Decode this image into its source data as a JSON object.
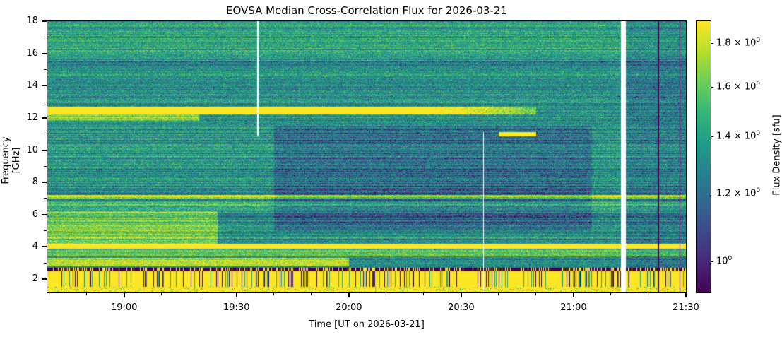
{
  "chart_data": {
    "type": "heatmap",
    "title": "EOVSA Median Cross-Correlation Flux for 2026-03-21",
    "xlabel": "Time [UT on 2026-03-21]",
    "ylabel": "Frequency [GHz]",
    "colorbar_label": "Flux Density [sfu]",
    "colorbar_scale": "log",
    "colormap": "viridis",
    "xlim": [
      "18:39",
      "21:30"
    ],
    "ylim": [
      1.2,
      18
    ],
    "clim": [
      0.92,
      1.91
    ],
    "x_ticks": [
      "19:00",
      "19:30",
      "20:00",
      "20:30",
      "21:00",
      "21:30"
    ],
    "y_ticks": [
      2,
      4,
      6,
      8,
      10,
      12,
      14,
      16,
      18
    ],
    "colorbar_ticks": [
      {
        "value": 1.0,
        "mantissa": "",
        "exp": "0"
      },
      {
        "value": 1.2,
        "mantissa": "1.2",
        "exp": "0"
      },
      {
        "value": 1.4,
        "mantissa": "1.4",
        "exp": "0"
      },
      {
        "value": 1.6,
        "mantissa": "1.6",
        "exp": "0"
      },
      {
        "value": 1.8,
        "mantissa": "1.8",
        "exp": "0"
      }
    ],
    "features": [
      {
        "name": "bright band",
        "freq_ghz": [
          12.2,
          12.7
        ],
        "time": [
          "18:39",
          "20:10"
        ],
        "flux_sfu": 2.0
      },
      {
        "name": "bright band",
        "freq_ghz": [
          3.9,
          4.2
        ],
        "time": [
          "18:39",
          "21:30"
        ],
        "flux_sfu": 2.0
      },
      {
        "name": "saturated low band",
        "freq_ghz": [
          1.2,
          2.5
        ],
        "time": [
          "18:39",
          "21:30"
        ],
        "flux_sfu": 2.0
      },
      {
        "name": "data gap",
        "freq_ghz": [
          1.2,
          18
        ],
        "time": [
          "21:13",
          "21:14"
        ]
      }
    ]
  }
}
